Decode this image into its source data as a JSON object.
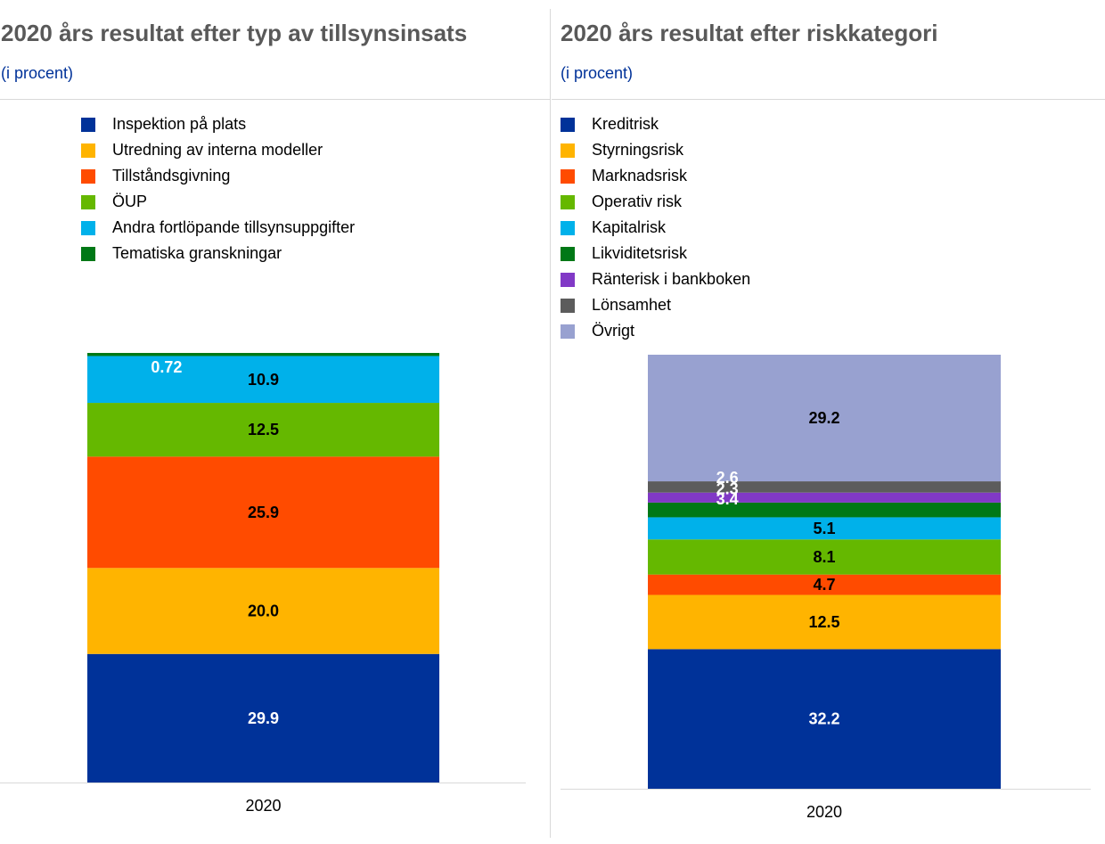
{
  "charts": [
    {
      "title": "2020 års resultat efter typ av tillsynsinsats",
      "subtitle": "(i procent)",
      "chart_data": {
        "type": "bar",
        "stacked": true,
        "categories": [
          "2020"
        ],
        "ylim": [
          0,
          100
        ],
        "grid": false,
        "legend_position": "top",
        "series": [
          {
            "name": "Inspektion på plats",
            "values": [
              29.9
            ],
            "label": "29.9",
            "color": "#003299",
            "label_color": "#ffffff"
          },
          {
            "name": "Utredning av interna modeller",
            "values": [
              20.0
            ],
            "label": "20.0",
            "color": "#ffb400",
            "label_color": "#000000"
          },
          {
            "name": "Tillståndsgivning",
            "values": [
              25.9
            ],
            "label": "25.9",
            "color": "#ff4b00",
            "label_color": "#000000"
          },
          {
            "name": "ÖUP",
            "values": [
              12.5
            ],
            "label": "12.5",
            "color": "#65b800",
            "label_color": "#000000"
          },
          {
            "name": "Andra fortlöpande tillsynsuppgifter",
            "values": [
              10.9
            ],
            "label": "10.9",
            "color": "#00b1ea",
            "label_color": "#000000"
          },
          {
            "name": "Tematiska granskningar",
            "values": [
              0.72
            ],
            "label": "0.72",
            "color": "#007816",
            "label_color": "#ffffff",
            "label_offset": "left"
          }
        ]
      }
    },
    {
      "title": "2020 års resultat efter riskkategori",
      "subtitle": "(i procent)",
      "chart_data": {
        "type": "bar",
        "stacked": true,
        "categories": [
          "2020"
        ],
        "ylim": [
          0,
          100
        ],
        "grid": false,
        "legend_position": "top",
        "series": [
          {
            "name": "Kreditrisk",
            "values": [
              32.2
            ],
            "label": "32.2",
            "color": "#003299",
            "label_color": "#ffffff"
          },
          {
            "name": "Styrningsrisk",
            "values": [
              12.5
            ],
            "label": "12.5",
            "color": "#ffb400",
            "label_color": "#000000"
          },
          {
            "name": "Marknadsrisk",
            "values": [
              4.7
            ],
            "label": "4.7",
            "color": "#ff4b00",
            "label_color": "#000000"
          },
          {
            "name": "Operativ risk",
            "values": [
              8.1
            ],
            "label": "8.1",
            "color": "#65b800",
            "label_color": "#000000"
          },
          {
            "name": "Kapitalrisk",
            "values": [
              5.1
            ],
            "label": "5.1",
            "color": "#00b1ea",
            "label_color": "#000000"
          },
          {
            "name": "Likviditetsrisk",
            "values": [
              3.4
            ],
            "label": "3.4",
            "color": "#007816",
            "label_color": "#ffffff",
            "label_offset": "left"
          },
          {
            "name": "Ränterisk i bankboken",
            "values": [
              2.3
            ],
            "label": "2.3",
            "color": "#8139c6",
            "label_color": "#ffffff",
            "label_offset": "left"
          },
          {
            "name": "Lönsamhet",
            "values": [
              2.6
            ],
            "label": "2.6",
            "color": "#5c5c5c",
            "label_color": "#ffffff",
            "label_offset": "left"
          },
          {
            "name": "Övrigt",
            "values": [
              29.2
            ],
            "label": "29.2",
            "color": "#98a1d0",
            "label_color": "#000000"
          }
        ]
      }
    }
  ]
}
